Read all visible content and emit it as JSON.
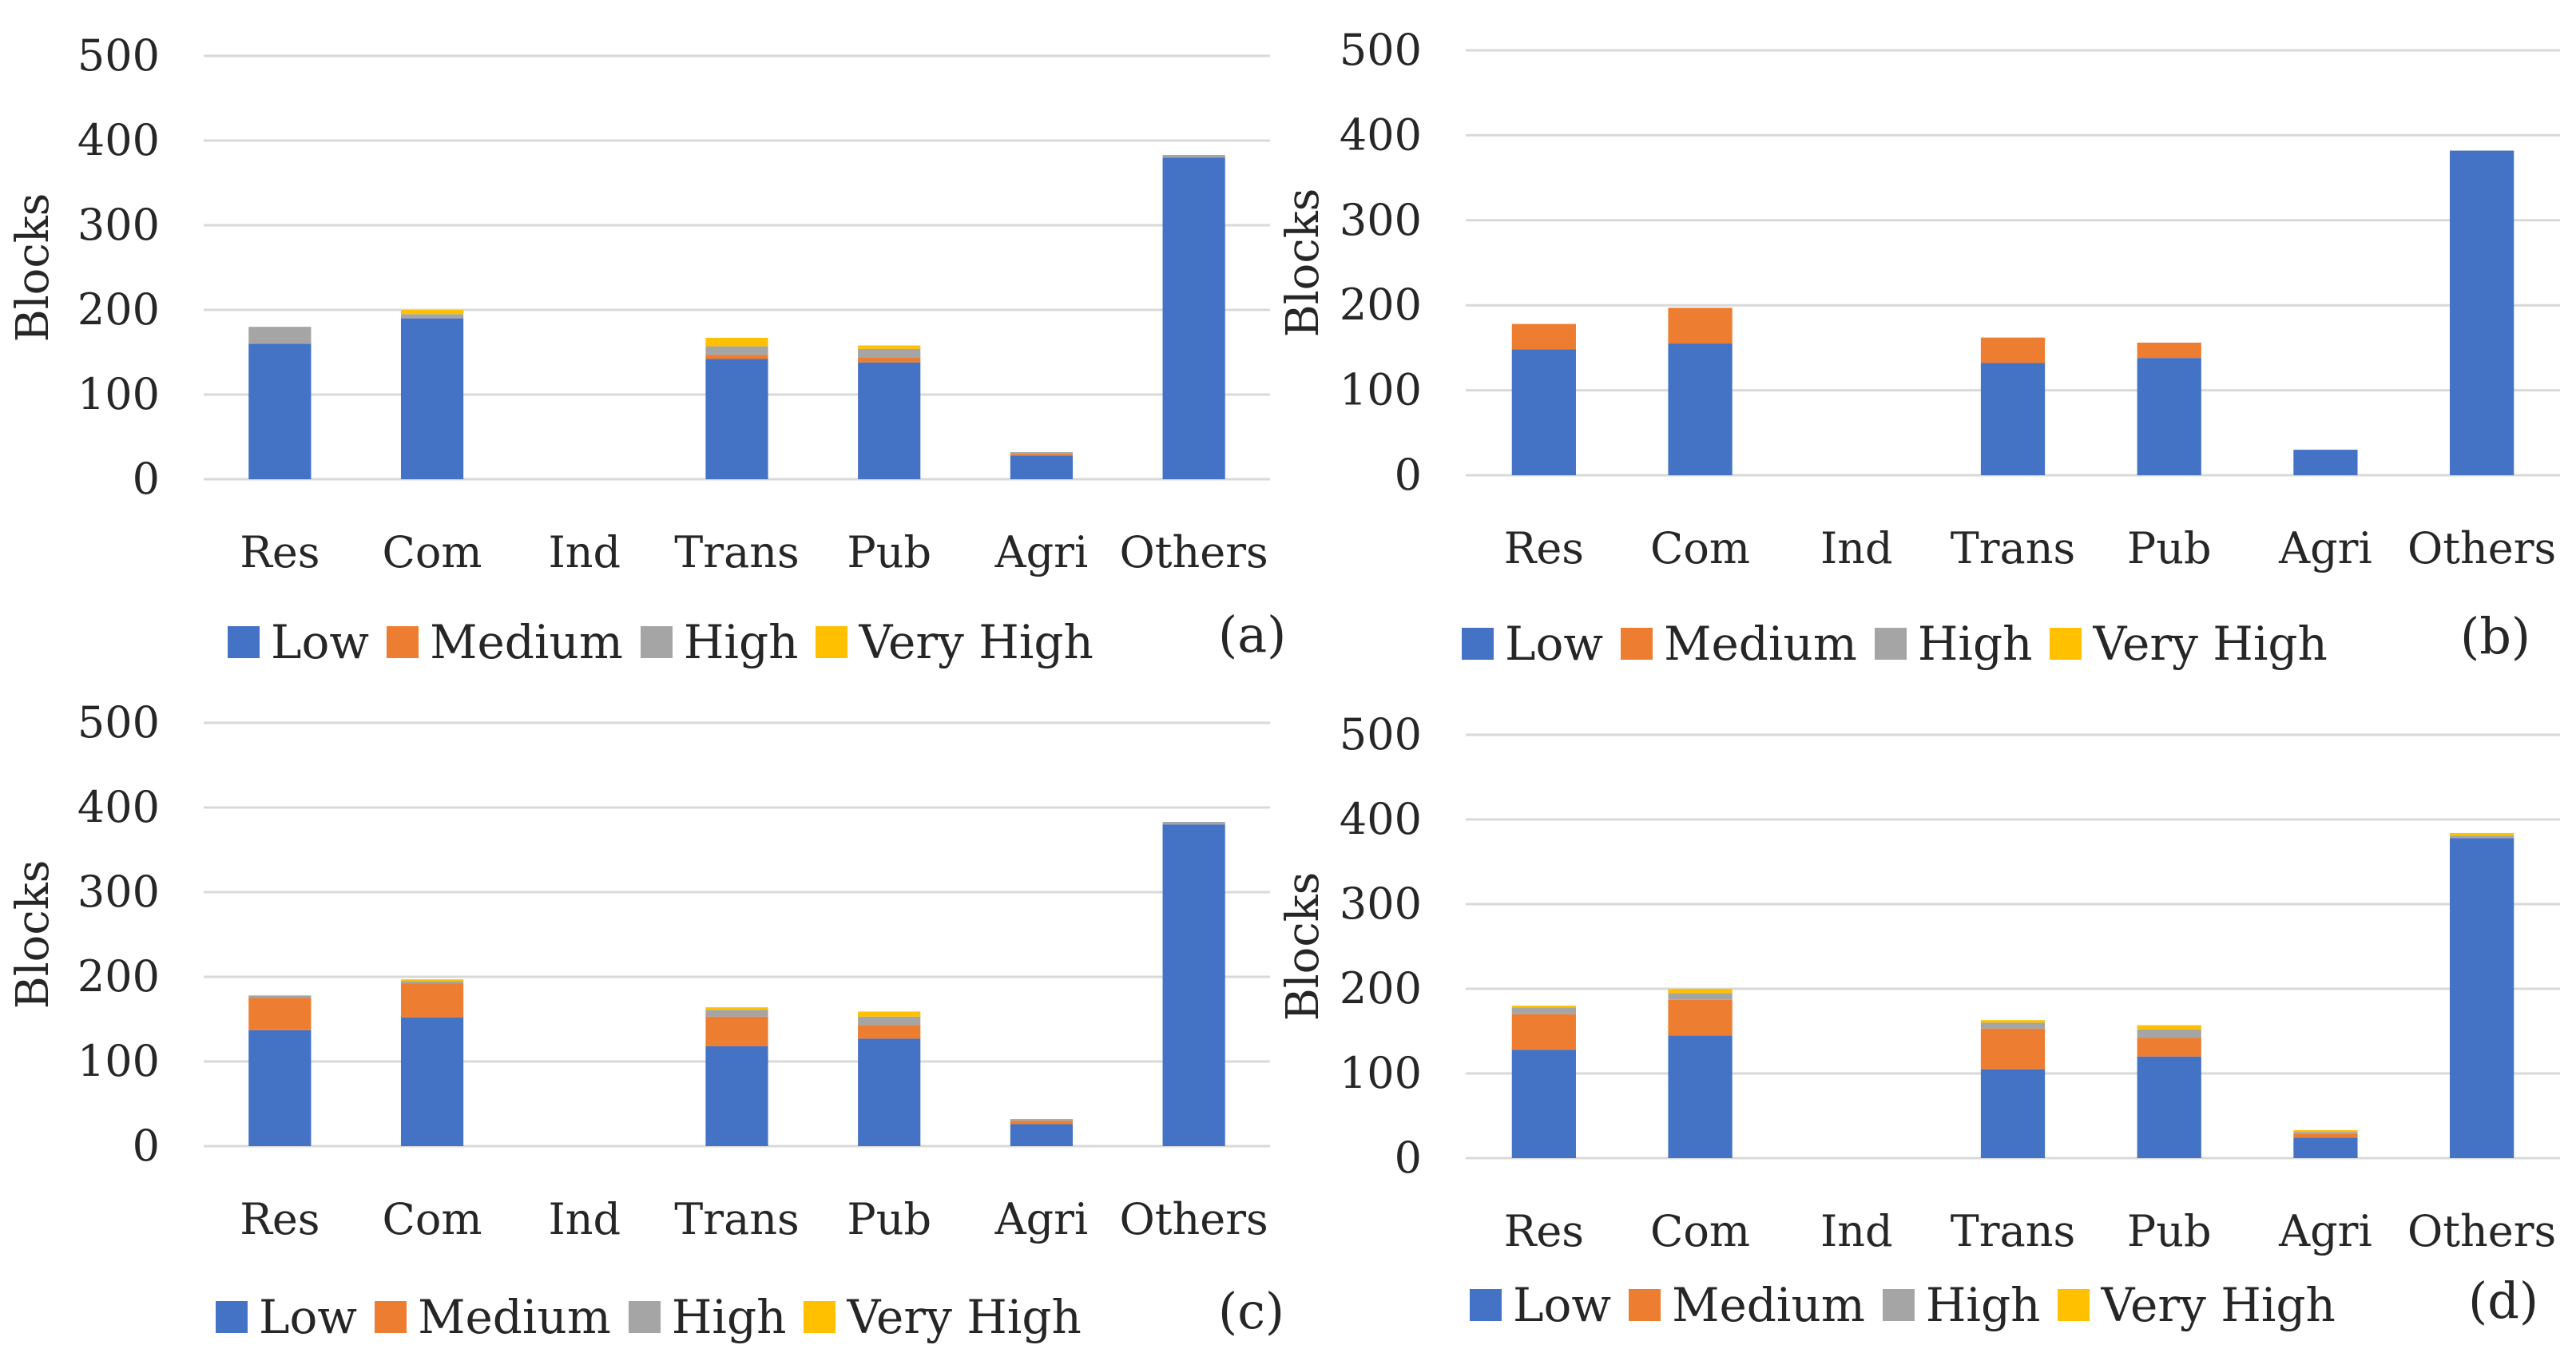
{
  "chart_data": [
    {
      "type": "bar",
      "stacked": true,
      "panel_label": "(a)",
      "ylabel": "Blocks",
      "ylim": [
        0,
        500
      ],
      "yticks": [
        "0",
        "100",
        "200",
        "300",
        "400",
        "500"
      ],
      "categories": [
        "Res",
        "Com",
        "Ind",
        "Trans",
        "Pub",
        "Agri",
        "Others"
      ],
      "series": [
        {
          "name": "Low",
          "color": "#4472C4",
          "values": [
            160,
            190,
            0,
            142,
            138,
            28,
            380
          ]
        },
        {
          "name": "Medium",
          "color": "#ED7D31",
          "values": [
            0,
            0,
            0,
            5,
            6,
            2,
            0
          ]
        },
        {
          "name": "High",
          "color": "#A5A5A5",
          "values": [
            20,
            5,
            0,
            10,
            10,
            2,
            3
          ]
        },
        {
          "name": "Very High",
          "color": "#FFC000",
          "values": [
            0,
            5,
            0,
            10,
            4,
            0,
            0
          ]
        }
      ]
    },
    {
      "type": "bar",
      "stacked": true,
      "panel_label": "(b)",
      "ylabel": "Blocks",
      "ylim": [
        0,
        500
      ],
      "yticks": [
        "0",
        "100",
        "200",
        "300",
        "400",
        "500"
      ],
      "categories": [
        "Res",
        "Com",
        "Ind",
        "Trans",
        "Pub",
        "Agri",
        "Others"
      ],
      "series": [
        {
          "name": "Low",
          "color": "#4472C4",
          "values": [
            148,
            155,
            0,
            132,
            138,
            30,
            382
          ]
        },
        {
          "name": "Medium",
          "color": "#ED7D31",
          "values": [
            30,
            42,
            0,
            30,
            18,
            0,
            0
          ]
        },
        {
          "name": "High",
          "color": "#A5A5A5",
          "values": [
            0,
            0,
            0,
            0,
            0,
            0,
            0
          ]
        },
        {
          "name": "Very High",
          "color": "#FFC000",
          "values": [
            0,
            0,
            0,
            0,
            0,
            0,
            0
          ]
        }
      ]
    },
    {
      "type": "bar",
      "stacked": true,
      "panel_label": "(c)",
      "ylabel": "Blocks",
      "ylim": [
        0,
        500
      ],
      "yticks": [
        "0",
        "100",
        "200",
        "300",
        "400",
        "500"
      ],
      "categories": [
        "Res",
        "Com",
        "Ind",
        "Trans",
        "Pub",
        "Agri",
        "Others"
      ],
      "series": [
        {
          "name": "Low",
          "color": "#4472C4",
          "values": [
            137,
            152,
            0,
            118,
            127,
            26,
            380
          ]
        },
        {
          "name": "Medium",
          "color": "#ED7D31",
          "values": [
            38,
            40,
            0,
            35,
            16,
            4,
            0
          ]
        },
        {
          "name": "High",
          "color": "#A5A5A5",
          "values": [
            3,
            3,
            0,
            8,
            10,
            2,
            3
          ]
        },
        {
          "name": "Very High",
          "color": "#FFC000",
          "values": [
            0,
            2,
            0,
            3,
            6,
            0,
            0
          ]
        }
      ]
    },
    {
      "type": "bar",
      "stacked": true,
      "panel_label": "(d)",
      "ylabel": "Blocks",
      "ylim": [
        0,
        500
      ],
      "yticks": [
        "0",
        "100",
        "200",
        "300",
        "400",
        "500"
      ],
      "categories": [
        "Res",
        "Com",
        "Ind",
        "Trans",
        "Pub",
        "Agri",
        "Others"
      ],
      "series": [
        {
          "name": "Low",
          "color": "#4472C4",
          "values": [
            128,
            145,
            0,
            105,
            120,
            24,
            378
          ]
        },
        {
          "name": "Medium",
          "color": "#ED7D31",
          "values": [
            42,
            42,
            0,
            48,
            22,
            5,
            0
          ]
        },
        {
          "name": "High",
          "color": "#A5A5A5",
          "values": [
            8,
            8,
            0,
            7,
            10,
            2,
            3
          ]
        },
        {
          "name": "Very High",
          "color": "#FFC000",
          "values": [
            2,
            5,
            0,
            3,
            5,
            2,
            3
          ]
        }
      ]
    }
  ]
}
